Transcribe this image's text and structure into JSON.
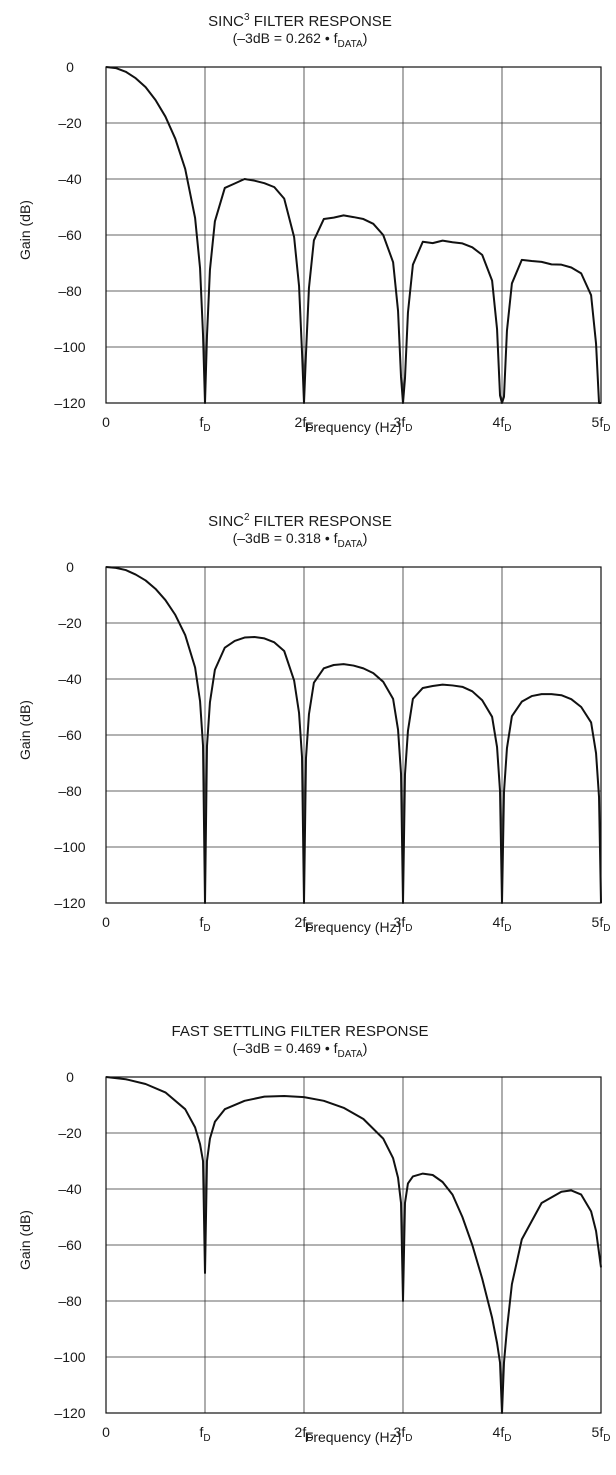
{
  "chart_data": [
    {
      "type": "line",
      "title": "SINC³ FILTER RESPONSE",
      "subtitle": "(–3dB = 0.262 • f_DATA)",
      "title_parts": {
        "pre": "SINC",
        "sup": "3",
        "post": " FILTER RESPONSE"
      },
      "subtitle_parts": {
        "pre": "(–3dB = 0.262 • f",
        "sub": "DATA",
        "post": ")"
      },
      "xlabel": "Frequency (Hz)",
      "ylabel": "Gain (dB)",
      "x_ticks": [
        "0",
        "fD",
        "2fD",
        "3fD",
        "4fD",
        "5fD"
      ],
      "y_ticks": [
        "0",
        "–20",
        "–40",
        "–60",
        "–80",
        "–100",
        "–120"
      ],
      "xlim": [
        0,
        5
      ],
      "ylim": [
        -120,
        0
      ],
      "grid": true,
      "x_units": "multiples of fD",
      "series": [
        {
          "x": [
            0,
            0.1,
            0.2,
            0.3,
            0.4,
            0.5,
            0.6,
            0.7,
            0.8,
            0.9,
            0.95,
            0.98,
            1.0,
            1.02,
            1.05,
            1.1,
            1.2,
            1.3,
            1.4,
            1.5,
            1.6,
            1.7,
            1.8,
            1.9,
            1.95,
            1.98,
            2.0,
            2.02,
            2.05,
            2.1,
            2.2,
            2.3,
            2.4,
            2.5,
            2.6,
            2.7,
            2.8,
            2.9,
            2.95,
            2.98,
            3.0,
            3.02,
            3.05,
            3.1,
            3.2,
            3.3,
            3.4,
            3.5,
            3.6,
            3.7,
            3.8,
            3.9,
            3.95,
            3.98,
            4.0,
            4.02,
            4.05,
            4.1,
            4.2,
            4.3,
            4.4,
            4.5,
            4.6,
            4.7,
            4.8,
            4.9,
            4.95,
            4.98,
            5.0
          ],
          "y": [
            0,
            -0.4,
            -1.7,
            -4.0,
            -7.2,
            -11.8,
            -17.7,
            -25.6,
            -36.4,
            -53.9,
            -71.8,
            -95.6,
            -120,
            -96.0,
            -72.4,
            -55.1,
            -43.2,
            -41.6,
            -40.0,
            -40.6,
            -41.5,
            -42.9,
            -47.0,
            -60.7,
            -78.2,
            -101.9,
            -120,
            -102.4,
            -78.9,
            -61.9,
            -54.3,
            -53.8,
            -53.0,
            -53.6,
            -54.3,
            -56.0,
            -60.0,
            -69.7,
            -87.1,
            -110.7,
            -120,
            -111.2,
            -87.7,
            -70.6,
            -62.4,
            -62.9,
            -62.0,
            -62.6,
            -63.0,
            -64.4,
            -67.1,
            -76.3,
            -93.6,
            -117.3,
            -120,
            -117.8,
            -94.2,
            -77.3,
            -68.9,
            -69.3,
            -69.6,
            -70.5,
            -70.6,
            -71.6,
            -73.7,
            -81.5,
            -98.8,
            -120,
            -120
          ]
        }
      ]
    },
    {
      "type": "line",
      "title": "SINC² FILTER RESPONSE",
      "subtitle": "(–3dB = 0.318 • f_DATA)",
      "title_parts": {
        "pre": "SINC",
        "sup": "2",
        "post": " FILTER RESPONSE"
      },
      "subtitle_parts": {
        "pre": "(–3dB = 0.318 • f",
        "sub": "DATA",
        "post": ")"
      },
      "xlabel": "Frequency (Hz)",
      "ylabel": "Gain (dB)",
      "x_ticks": [
        "0",
        "fD",
        "2fD",
        "3fD",
        "4fD",
        "5fD"
      ],
      "y_ticks": [
        "0",
        "–20",
        "–40",
        "–60",
        "–80",
        "–100",
        "–120"
      ],
      "xlim": [
        0,
        5
      ],
      "ylim": [
        -120,
        0
      ],
      "grid": true,
      "x_units": "multiples of fD",
      "series": [
        {
          "x": [
            0,
            0.1,
            0.2,
            0.3,
            0.4,
            0.5,
            0.6,
            0.7,
            0.8,
            0.9,
            0.95,
            0.98,
            1.0,
            1.02,
            1.05,
            1.1,
            1.2,
            1.3,
            1.4,
            1.5,
            1.6,
            1.7,
            1.8,
            1.9,
            1.95,
            1.98,
            2.0,
            2.02,
            2.05,
            2.1,
            2.2,
            2.3,
            2.4,
            2.5,
            2.6,
            2.7,
            2.8,
            2.9,
            2.95,
            2.98,
            3.0,
            3.02,
            3.05,
            3.1,
            3.2,
            3.3,
            3.4,
            3.5,
            3.6,
            3.7,
            3.8,
            3.9,
            3.95,
            3.98,
            4.0,
            4.02,
            4.05,
            4.1,
            4.2,
            4.3,
            4.4,
            4.5,
            4.6,
            4.7,
            4.8,
            4.9,
            4.95,
            4.98,
            5.0
          ],
          "y": [
            0,
            -0.3,
            -1.1,
            -2.7,
            -4.8,
            -7.8,
            -11.8,
            -17.1,
            -24.3,
            -35.9,
            -47.9,
            -63.8,
            -120,
            -64.0,
            -48.3,
            -36.7,
            -28.8,
            -26.4,
            -25.2,
            -25.0,
            -25.5,
            -26.9,
            -30.0,
            -40.5,
            -52.1,
            -67.9,
            -120,
            -68.3,
            -52.6,
            -41.3,
            -36.2,
            -35.0,
            -34.7,
            -35.2,
            -36.2,
            -37.9,
            -41.0,
            -47.1,
            -58.1,
            -73.8,
            -120,
            -74.1,
            -58.5,
            -47.1,
            -43.2,
            -42.5,
            -42.0,
            -42.3,
            -42.8,
            -44.4,
            -47.6,
            -53.5,
            -64.3,
            -80.0,
            -120,
            -80.4,
            -64.7,
            -53.3,
            -48.1,
            -46.1,
            -45.4,
            -45.4,
            -45.8,
            -47.2,
            -50.0,
            -55.5,
            -66.5,
            -82.1,
            -120
          ]
        }
      ]
    },
    {
      "type": "line",
      "title": "FAST SETTLING FILTER RESPONSE",
      "subtitle": "(–3dB = 0.469 • f_DATA)",
      "title_parts": {
        "pre": "FAST SETTLING FILTER RESPONSE",
        "sup": "",
        "post": ""
      },
      "subtitle_parts": {
        "pre": "(–3dB = 0.469 • f",
        "sub": "DATA",
        "post": ")"
      },
      "xlabel": "Frequency (Hz)",
      "ylabel": "Gain (dB)",
      "x_ticks": [
        "0",
        "fD",
        "2fD",
        "3fD",
        "4fD",
        "5fD"
      ],
      "y_ticks": [
        "0",
        "–20",
        "–40",
        "–60",
        "–80",
        "–100",
        "–120"
      ],
      "xlim": [
        0,
        5
      ],
      "ylim": [
        -120,
        0
      ],
      "grid": true,
      "x_units": "multiples of fD",
      "series": [
        {
          "x": [
            0,
            0.2,
            0.4,
            0.6,
            0.8,
            0.9,
            0.95,
            0.98,
            1.0,
            1.02,
            1.05,
            1.1,
            1.2,
            1.4,
            1.6,
            1.8,
            2.0,
            2.2,
            2.4,
            2.6,
            2.8,
            2.9,
            2.95,
            2.98,
            3.0,
            3.02,
            3.05,
            3.1,
            3.2,
            3.3,
            3.4,
            3.5,
            3.6,
            3.7,
            3.8,
            3.9,
            3.95,
            3.98,
            4.0,
            4.02,
            4.05,
            4.1,
            4.2,
            4.4,
            4.6,
            4.7,
            4.8,
            4.9,
            4.95,
            5.0
          ],
          "y": [
            0,
            -0.8,
            -2.5,
            -5.5,
            -11.5,
            -18,
            -24,
            -30,
            -70,
            -30,
            -22,
            -16,
            -11.5,
            -8.5,
            -7.0,
            -6.8,
            -7.2,
            -8.5,
            -11,
            -15,
            -22,
            -29,
            -36,
            -45,
            -80,
            -45,
            -38,
            -35.5,
            -34.5,
            -35,
            -37.5,
            -42,
            -50,
            -60,
            -72,
            -86,
            -95,
            -102,
            -120,
            -102,
            -90,
            -74,
            -58,
            -45,
            -41,
            -40.5,
            -42,
            -48,
            -55,
            -68
          ]
        }
      ]
    }
  ]
}
